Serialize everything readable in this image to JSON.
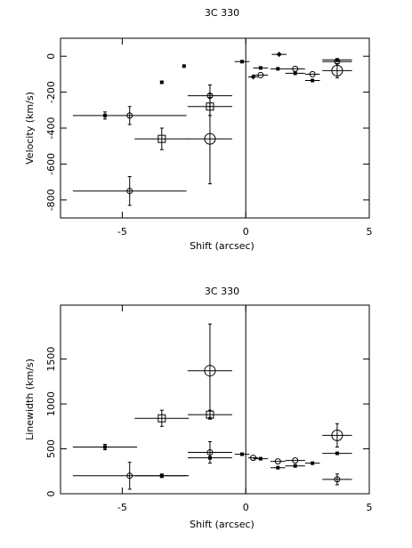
{
  "chart_data": [
    {
      "type": "scatter",
      "title": "3C 330",
      "xlabel": "Shift (arcsec)",
      "ylabel": "Velocity (km/s)",
      "xlim": [
        -7.5,
        5
      ],
      "ylim": [
        -900,
        100
      ],
      "xticks": [
        -5,
        0,
        5
      ],
      "yticks": [
        0,
        -200,
        -400,
        -600,
        -800
      ],
      "vline": 0,
      "series": [
        {
          "marker": "square",
          "x": [
            -0.15,
            -2.5,
            -3.4,
            -5.7,
            0.6,
            1.3,
            2.0,
            2.7,
            3.7
          ],
          "values": [
            -30,
            -55,
            -145,
            -330,
            -65,
            -70,
            -95,
            -135,
            -20
          ],
          "xerr": [
            0.3,
            0,
            0,
            0,
            0.3,
            0.3,
            0.4,
            0.3,
            0.6
          ],
          "yerr": [
            0,
            0,
            0,
            20,
            0,
            0,
            0,
            0,
            0
          ]
        },
        {
          "marker": "circle",
          "x": [
            -4.7,
            -1.45,
            -4.7,
            0.6,
            2.0,
            2.7,
            3.7
          ],
          "values": [
            -330,
            -220,
            -750,
            -105,
            -70,
            -100,
            -30
          ],
          "xerr": [
            2.3,
            0.9,
            2.3,
            0.3,
            0.4,
            0.3,
            0.6
          ],
          "yerr": [
            50,
            60,
            80,
            0,
            0,
            0,
            0
          ]
        },
        {
          "marker": "open-square",
          "x": [
            -1.45,
            -3.4
          ],
          "values": [
            -280,
            -460
          ],
          "xerr": [
            0.9,
            1.1
          ],
          "yerr": [
            50,
            60
          ]
        },
        {
          "marker": "big-circle",
          "x": [
            -1.45,
            3.7
          ],
          "values": [
            -460,
            -80
          ],
          "xerr": [
            0.9,
            0.6
          ],
          "yerr": [
            250,
            40
          ]
        },
        {
          "marker": "diamond",
          "x": [
            0.3,
            1.35
          ],
          "values": [
            -115,
            10
          ],
          "xerr": [
            0.2,
            0.3
          ],
          "yerr": [
            0,
            0
          ]
        }
      ]
    },
    {
      "type": "scatter",
      "title": "3C 330",
      "xlabel": "Shift (arcsec)",
      "ylabel": "Linewidth (km/s)",
      "xlim": [
        -7.5,
        5
      ],
      "ylim": [
        0,
        2100
      ],
      "xticks": [
        -5,
        0,
        5
      ],
      "yticks": [
        0,
        500,
        1000,
        1500
      ],
      "vline": 0,
      "series": [
        {
          "marker": "square",
          "x": [
            -5.7,
            -3.4,
            -1.45,
            -0.15,
            0.6,
            1.3,
            2.0,
            2.7,
            3.7
          ],
          "values": [
            520,
            200,
            400,
            440,
            390,
            290,
            310,
            340,
            450
          ],
          "xerr": [
            1.3,
            1.1,
            0.9,
            0.3,
            0.3,
            0.3,
            0.4,
            0.3,
            0.6
          ],
          "yerr": [
            30,
            20,
            0,
            0,
            0,
            0,
            0,
            0,
            0
          ]
        },
        {
          "marker": "circle",
          "x": [
            -4.7,
            -1.45,
            0.3,
            1.3,
            2.0,
            3.7
          ],
          "values": [
            200,
            460,
            400,
            360,
            370,
            160
          ],
          "xerr": [
            2.3,
            0.9,
            0.2,
            0.3,
            0.4,
            0.6
          ],
          "yerr": [
            150,
            120,
            0,
            0,
            0,
            60
          ]
        },
        {
          "marker": "open-square",
          "x": [
            -3.4,
            -1.45
          ],
          "values": [
            840,
            880
          ],
          "xerr": [
            1.1,
            0.9
          ],
          "yerr": [
            90,
            50
          ]
        },
        {
          "marker": "big-circle",
          "x": [
            -1.45,
            3.7
          ],
          "values": [
            1370,
            650
          ],
          "xerr": [
            0.9,
            0.6
          ],
          "yerr": [
            520,
            130
          ]
        }
      ]
    }
  ]
}
